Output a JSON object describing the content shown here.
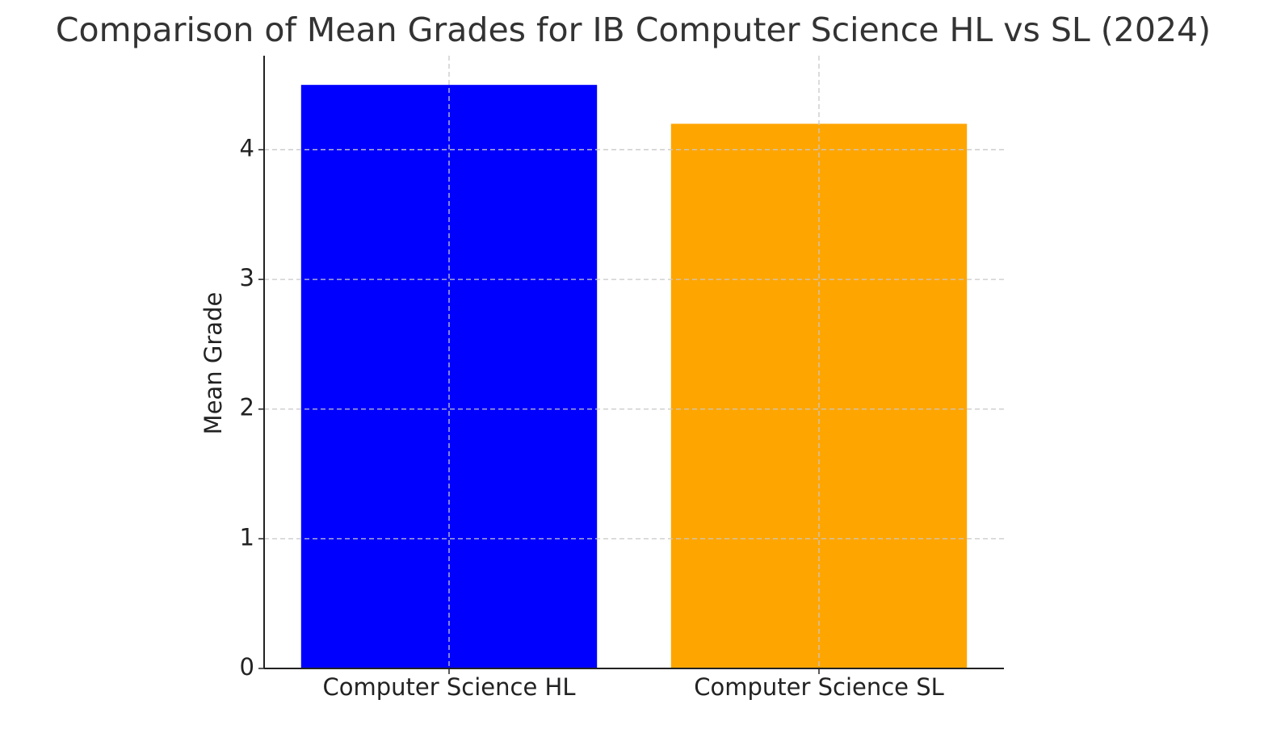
{
  "chart_data": {
    "type": "bar",
    "title": "Comparison of Mean Grades for IB Computer Science HL vs SL (2024)",
    "y_label": "Mean Grade",
    "categories": [
      "Computer Science HL",
      "Computer Science SL"
    ],
    "values": [
      4.5,
      4.2
    ],
    "colors": [
      "#0000ff",
      "#ffa500"
    ],
    "ylim": [
      0,
      4.725
    ],
    "yticks": [
      0,
      1,
      2,
      3,
      4
    ],
    "grid": true
  }
}
